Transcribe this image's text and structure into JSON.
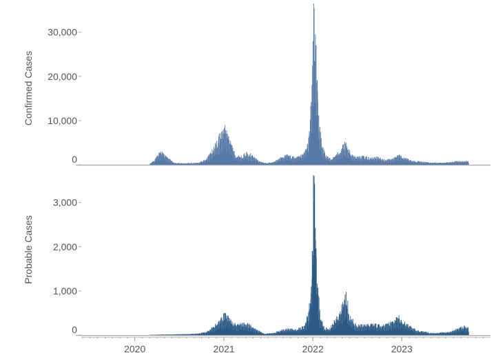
{
  "colors": {
    "confirmed": "#5679a6",
    "probable": "#2d5a85",
    "axis": "#aaaaaa",
    "tick_text": "#555555"
  },
  "chart_data": [
    {
      "type": "bar",
      "panel": "top",
      "ylabel": "Confirmed Cases",
      "ylim": [
        0,
        36500
      ],
      "yticks": [
        0,
        10000,
        20000,
        30000
      ],
      "ytick_labels": [
        "0",
        "10,000",
        "20,000",
        "30,000"
      ],
      "xlim": [
        "2019-06-01",
        "2023-12-31"
      ],
      "series": [
        {
          "values_note_keypoints": true,
          "keypoints": [
            [
              "2020-03-01",
              150
            ],
            [
              "2020-03-25",
              1200
            ],
            [
              "2020-04-15",
              2800
            ],
            [
              "2020-05-10",
              1500
            ],
            [
              "2020-06-10",
              400
            ],
            [
              "2020-07-15",
              300
            ],
            [
              "2020-09-15",
              400
            ],
            [
              "2020-10-20",
              1200
            ],
            [
              "2020-11-20",
              3500
            ],
            [
              "2020-12-15",
              6000
            ],
            [
              "2021-01-05",
              7500
            ],
            [
              "2021-01-20",
              5500
            ],
            [
              "2021-02-15",
              2000
            ],
            [
              "2021-03-10",
              1600
            ],
            [
              "2021-04-05",
              2500
            ],
            [
              "2021-04-25",
              2000
            ],
            [
              "2021-05-25",
              700
            ],
            [
              "2021-06-25",
              300
            ],
            [
              "2021-07-25",
              600
            ],
            [
              "2021-08-25",
              1600
            ],
            [
              "2021-09-20",
              2000
            ],
            [
              "2021-10-20",
              1400
            ],
            [
              "2021-11-20",
              2000
            ],
            [
              "2021-12-10",
              4000
            ],
            [
              "2021-12-22",
              11000
            ],
            [
              "2021-12-30",
              22000
            ],
            [
              "2022-01-05",
              30000
            ],
            [
              "2022-01-12",
              23000
            ],
            [
              "2022-01-22",
              11000
            ],
            [
              "2022-02-05",
              4000
            ],
            [
              "2022-02-25",
              1600
            ],
            [
              "2022-03-20",
              1200
            ],
            [
              "2022-04-15",
              2500
            ],
            [
              "2022-05-10",
              4200
            ],
            [
              "2022-05-25",
              3000
            ],
            [
              "2022-06-20",
              1600
            ],
            [
              "2022-07-20",
              1700
            ],
            [
              "2022-08-25",
              1400
            ],
            [
              "2022-09-25",
              1500
            ],
            [
              "2022-10-25",
              1000
            ],
            [
              "2022-11-25",
              1300
            ],
            [
              "2022-12-20",
              1900
            ],
            [
              "2023-01-15",
              1300
            ],
            [
              "2023-02-15",
              800
            ],
            [
              "2023-04-15",
              500
            ],
            [
              "2023-06-15",
              400
            ],
            [
              "2023-08-15",
              700
            ],
            [
              "2023-09-20",
              800
            ],
            [
              "2023-10-01",
              700
            ]
          ],
          "spikes": [
            [
              "2020-12-28",
              8000
            ],
            [
              "2021-01-04",
              9000
            ],
            [
              "2021-01-11",
              7800
            ],
            [
              "2021-12-27",
              18000
            ],
            [
              "2021-12-31",
              28000
            ],
            [
              "2022-01-03",
              36500
            ],
            [
              "2022-01-04",
              33000
            ],
            [
              "2022-01-10",
              29500
            ],
            [
              "2022-01-11",
              27000
            ],
            [
              "2022-01-18",
              19000
            ],
            [
              "2022-05-16",
              5000
            ]
          ]
        }
      ]
    },
    {
      "type": "bar",
      "panel": "bottom",
      "ylabel": "Probable Cases",
      "ylim": [
        0,
        3650
      ],
      "yticks": [
        0,
        1000,
        2000,
        3000
      ],
      "ytick_labels": [
        "0",
        "1,000",
        "2,000",
        "3,000"
      ],
      "xlim": [
        "2019-06-01",
        "2023-12-31"
      ],
      "xticks": [
        "2020-01-01",
        "2021-01-01",
        "2022-01-01",
        "2023-01-01"
      ],
      "xtick_labels": [
        "2020",
        "2021",
        "2022",
        "2023"
      ],
      "series": [
        {
          "keypoints": [
            [
              "2020-03-01",
              5
            ],
            [
              "2020-06-01",
              15
            ],
            [
              "2020-09-01",
              25
            ],
            [
              "2020-10-20",
              60
            ],
            [
              "2020-11-20",
              180
            ],
            [
              "2020-12-15",
              300
            ],
            [
              "2021-01-05",
              440
            ],
            [
              "2021-01-25",
              300
            ],
            [
              "2021-02-20",
              200
            ],
            [
              "2021-03-15",
              240
            ],
            [
              "2021-04-10",
              220
            ],
            [
              "2021-05-05",
              130
            ],
            [
              "2021-06-15",
              30
            ],
            [
              "2021-07-20",
              40
            ],
            [
              "2021-08-25",
              100
            ],
            [
              "2021-09-25",
              130
            ],
            [
              "2021-10-25",
              110
            ],
            [
              "2021-11-25",
              180
            ],
            [
              "2021-12-10",
              400
            ],
            [
              "2021-12-22",
              800
            ],
            [
              "2021-12-30",
              1800
            ],
            [
              "2022-01-04",
              3300
            ],
            [
              "2022-01-10",
              2800
            ],
            [
              "2022-01-17",
              1200
            ],
            [
              "2022-01-30",
              400
            ],
            [
              "2022-02-15",
              150
            ],
            [
              "2022-03-05",
              120
            ],
            [
              "2022-03-25",
              250
            ],
            [
              "2022-04-20",
              450
            ],
            [
              "2022-05-12",
              750
            ],
            [
              "2022-05-28",
              400
            ],
            [
              "2022-06-25",
              220
            ],
            [
              "2022-08-01",
              200
            ],
            [
              "2022-09-05",
              220
            ],
            [
              "2022-10-10",
              190
            ],
            [
              "2022-11-10",
              240
            ],
            [
              "2022-12-10",
              330
            ],
            [
              "2022-12-28",
              300
            ],
            [
              "2023-01-25",
              200
            ],
            [
              "2023-03-01",
              100
            ],
            [
              "2023-05-01",
              40
            ],
            [
              "2023-07-15",
              60
            ],
            [
              "2023-08-20",
              140
            ],
            [
              "2023-09-10",
              180
            ],
            [
              "2023-10-01",
              140
            ]
          ],
          "spikes": [
            [
              "2021-01-04",
              500
            ],
            [
              "2021-12-29",
              1900
            ],
            [
              "2022-01-02",
              3620
            ],
            [
              "2022-01-05",
              3600
            ],
            [
              "2022-01-09",
              1950
            ],
            [
              "2022-01-12",
              1500
            ],
            [
              "2022-05-16",
              980
            ],
            [
              "2022-05-23",
              780
            ],
            [
              "2022-12-19",
              450
            ]
          ]
        }
      ]
    }
  ]
}
